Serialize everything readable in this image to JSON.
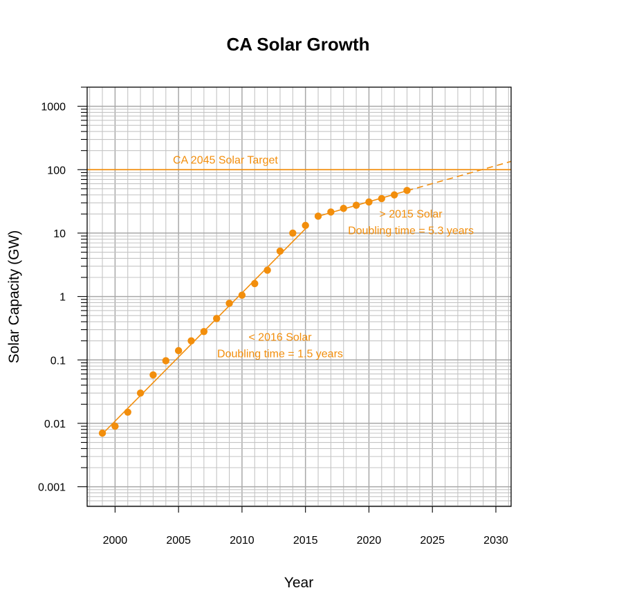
{
  "colors": {
    "accent": "#f28e0c",
    "grid": "#c4c4c4",
    "axis": "#000000",
    "background": "#ffffff"
  },
  "chart_data": {
    "type": "scatter",
    "title": "CA Solar Growth",
    "xlabel": "Year",
    "ylabel": "Solar Capacity (GW)",
    "y_scale": "log",
    "xlim": [
      1997.8,
      2031.2
    ],
    "ylim": [
      0.00049,
      2000
    ],
    "grid": true,
    "x_ticks": [
      2000,
      2005,
      2010,
      2015,
      2020,
      2025,
      2030
    ],
    "x_tick_labels": [
      "2000",
      "2005",
      "2010",
      "2015",
      "2020",
      "2025",
      "2030"
    ],
    "y_ticks": [
      0.001,
      0.01,
      0.1,
      1,
      10,
      100,
      1000
    ],
    "y_tick_labels": [
      "0.001",
      "0.01",
      "0.1",
      "1",
      "10",
      "100",
      "1000"
    ],
    "series": [
      {
        "kind": "points",
        "x": [
          1999,
          2000,
          2001,
          2002,
          2003,
          2004,
          2005,
          2006,
          2007,
          2008,
          2009,
          2010,
          2011,
          2012,
          2013,
          2014,
          2015,
          2016,
          2017,
          2018,
          2019,
          2020,
          2021,
          2022,
          2023
        ],
        "y": [
          0.007,
          0.009,
          0.015,
          0.03,
          0.058,
          0.097,
          0.14,
          0.2,
          0.28,
          0.45,
          0.78,
          1.05,
          1.6,
          2.6,
          5.2,
          10,
          13.2,
          18.5,
          21.5,
          24.5,
          27.5,
          31,
          35,
          40,
          47
        ]
      },
      {
        "kind": "fit",
        "style": "solid",
        "x": [
          1999,
          2015
        ],
        "y": [
          0.0068,
          11.7
        ]
      },
      {
        "kind": "fit",
        "style": "solid",
        "x": [
          2016,
          2023
        ],
        "y": [
          18.4,
          46.5
        ]
      },
      {
        "kind": "fit",
        "style": "dashed",
        "x": [
          2023,
          2031.2
        ],
        "y": [
          46.5,
          135
        ]
      },
      {
        "kind": "hline",
        "y": 100,
        "label": "CA 2045 Solar Target"
      }
    ],
    "annotations": [
      {
        "id": "target",
        "lines": [
          "CA 2045 Solar Target"
        ],
        "x": 2009.5,
        "y": 125
      },
      {
        "id": "post2015",
        "lines": [
          "> 2015 Solar",
          "Doubling time = 5.3 years"
        ],
        "x": 2023.3,
        "y": 17.5
      },
      {
        "id": "pre2016",
        "lines": [
          "< 2016 Solar",
          "Doubling time = 1.5 years"
        ],
        "x": 2013.0,
        "y": 0.2
      }
    ]
  }
}
